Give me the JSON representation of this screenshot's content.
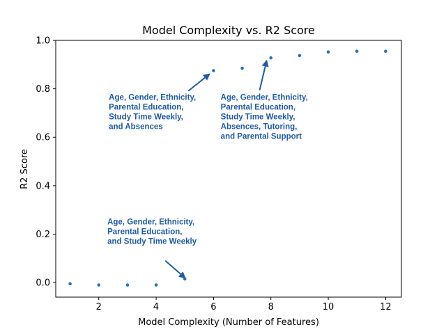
{
  "chart_data": {
    "type": "scatter",
    "title": "Model Complexity vs. R2 Score",
    "xlabel": "Model Complexity (Number of Features)",
    "ylabel": "R2 Score",
    "xlim": [
      0.5,
      12.55
    ],
    "ylim": [
      -0.06,
      1.0
    ],
    "xticks": [
      2,
      4,
      6,
      8,
      10,
      12
    ],
    "xtick_labels": [
      "2",
      "4",
      "6",
      "8",
      "10",
      "12"
    ],
    "yticks": [
      0.0,
      0.2,
      0.4,
      0.6,
      0.8,
      1.0
    ],
    "ytick_labels": [
      "0.0",
      "0.2",
      "0.4",
      "0.6",
      "0.8",
      "1.0"
    ],
    "grid": false,
    "colors": {
      "points": "#1f77b4",
      "annotation": "#1f5aa6"
    },
    "x": [
      1,
      2,
      3,
      4,
      5,
      6,
      7,
      8,
      9,
      10,
      11,
      12
    ],
    "y": [
      -0.005,
      -0.01,
      -0.01,
      -0.01,
      0.015,
      0.875,
      0.885,
      0.928,
      0.937,
      0.952,
      0.955,
      0.955
    ],
    "annotations": [
      {
        "lines": [
          "Age, Gender, Ethnicity,",
          "Parental Education,",
          "and Study Time Weekly"
        ],
        "text_at": [
          2.3,
          0.24
        ],
        "target": [
          5.0,
          0.02
        ]
      },
      {
        "lines": [
          "Age, Gender, Ethnicity,",
          "Parental Education,",
          "Study Time Weekly,",
          "and Absences"
        ],
        "text_at": [
          2.35,
          0.755
        ],
        "target": [
          5.85,
          0.86
        ]
      },
      {
        "lines": [
          "Age, Gender, Ethnicity,",
          "Parental Education,",
          "Study Time Weekly,",
          "Absences, Tutoring,",
          "and Parental Support"
        ],
        "text_at": [
          6.25,
          0.755
        ],
        "target": [
          7.85,
          0.915
        ]
      }
    ]
  }
}
